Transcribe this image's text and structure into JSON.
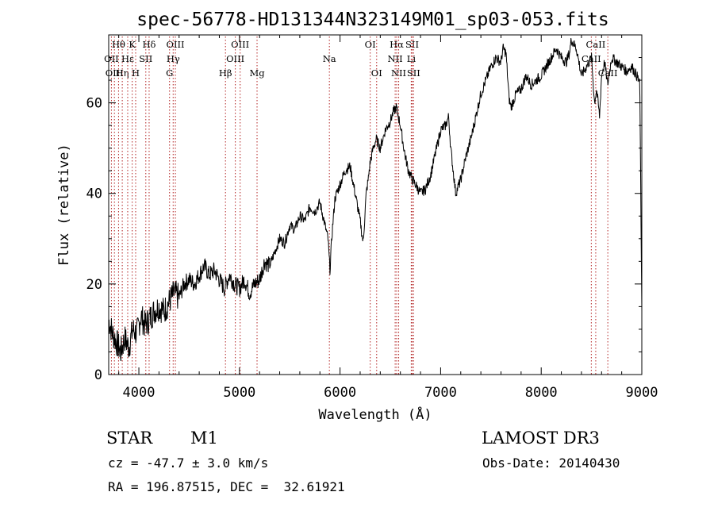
{
  "chart_data": {
    "type": "line",
    "title": "spec-56778-HD131344N323149M01_sp03-053.fits",
    "xlabel": "Wavelength (Å)",
    "ylabel": "Flux (relative)",
    "xlim": [
      3700,
      9000
    ],
    "ylim": [
      0,
      75
    ],
    "xticks": [
      4000,
      5000,
      6000,
      7000,
      8000,
      9000
    ],
    "yticks": [
      0,
      20,
      40,
      60
    ],
    "grid": false,
    "line_color": "#000000",
    "marker_color": "#b22222",
    "series": [
      {
        "x": [
          3700,
          3740,
          3780,
          3820,
          3860,
          3900,
          3940,
          3980,
          4020,
          4060,
          4100,
          4150,
          4200,
          4250,
          4300,
          4350,
          4400,
          4450,
          4500,
          4550,
          4600,
          4650,
          4700,
          4750,
          4800,
          4850,
          4900,
          4950,
          5000,
          5050,
          5100,
          5150,
          5200,
          5250,
          5300,
          5350,
          5400,
          5450,
          5500,
          5550,
          5600,
          5650,
          5700,
          5750,
          5800,
          5850,
          5880,
          5900,
          5920,
          5950,
          6000,
          6050,
          6100,
          6150,
          6200,
          6230,
          6260,
          6280,
          6300,
          6330,
          6360,
          6400,
          6450,
          6500,
          6530,
          6560,
          6580,
          6600,
          6620,
          6650,
          6680,
          6700,
          6720,
          6750,
          6800,
          6850,
          6900,
          6950,
          7000,
          7050,
          7080,
          7100,
          7120,
          7150,
          7200,
          7250,
          7300,
          7350,
          7400,
          7450,
          7500,
          7550,
          7600,
          7620,
          7650,
          7680,
          7700,
          7750,
          7800,
          7850,
          7900,
          7950,
          8000,
          8050,
          8100,
          8150,
          8200,
          8250,
          8280,
          8300,
          8350,
          8400,
          8450,
          8500,
          8530,
          8550,
          8580,
          8600,
          8630,
          8660,
          8700,
          8750,
          8800,
          8850,
          8900,
          8950,
          8970,
          8980,
          9000
        ],
        "y": [
          12,
          9,
          7,
          5,
          8,
          6,
          10,
          9,
          13,
          11,
          12,
          14,
          15,
          14,
          16,
          18,
          17,
          20,
          21,
          20,
          22,
          24,
          22,
          23,
          21,
          19,
          22,
          20,
          19,
          21,
          18,
          20,
          21,
          25,
          24,
          27,
          30,
          29,
          33,
          32,
          35,
          34,
          37,
          36,
          38,
          33,
          30,
          23,
          31,
          39,
          42,
          45,
          46,
          40,
          34,
          29,
          40,
          43,
          47,
          50,
          52,
          50,
          54,
          56,
          58,
          59,
          57,
          55,
          52,
          48,
          45,
          44,
          43,
          42,
          40,
          41,
          44,
          49,
          54,
          55,
          57,
          50,
          46,
          40,
          43,
          48,
          52,
          57,
          62,
          65,
          68,
          70,
          69,
          72,
          71,
          61,
          59,
          62,
          63,
          66,
          64,
          65,
          66,
          68,
          70,
          72,
          70,
          69,
          71,
          74,
          72,
          66,
          68,
          70,
          60,
          63,
          57,
          66,
          69,
          64,
          70,
          69,
          68,
          67,
          68,
          66,
          65,
          64,
          14
        ]
      }
    ],
    "line_markers": [
      {
        "name": "Hθ",
        "x": 3798,
        "row": 0
      },
      {
        "name": "OII",
        "x": 3727,
        "row": 1
      },
      {
        "name": "OIII",
        "x": 3757,
        "row": 2
      },
      {
        "name": "Hη",
        "x": 3835,
        "row": 2
      },
      {
        "name": "Hε",
        "x": 3889,
        "row": 1
      },
      {
        "name": "K",
        "x": 3934,
        "row": 0
      },
      {
        "name": "H",
        "x": 3968,
        "row": 2
      },
      {
        "name": "SII",
        "x": 4069,
        "row": 1
      },
      {
        "name": "Hδ",
        "x": 4102,
        "row": 0
      },
      {
        "name": "OIII",
        "x": 4363,
        "row": 0
      },
      {
        "name": "Hγ",
        "x": 4341,
        "row": 1
      },
      {
        "name": "G",
        "x": 4305,
        "row": 2
      },
      {
        "name": "Hβ",
        "x": 4861,
        "row": 2
      },
      {
        "name": "OIII",
        "x": 5007,
        "row": 0
      },
      {
        "name": "OIII",
        "x": 4959,
        "row": 1
      },
      {
        "name": "Mg",
        "x": 5175,
        "row": 2
      },
      {
        "name": "Na",
        "x": 5894,
        "row": 1
      },
      {
        "name": "OI",
        "x": 6300,
        "row": 0
      },
      {
        "name": "OI",
        "x": 6364,
        "row": 2
      },
      {
        "name": "Hα",
        "x": 6563,
        "row": 0
      },
      {
        "name": "NII",
        "x": 6548,
        "row": 1
      },
      {
        "name": "NII",
        "x": 6583,
        "row": 2
      },
      {
        "name": "Li",
        "x": 6708,
        "row": 1
      },
      {
        "name": "SII",
        "x": 6717,
        "row": 0
      },
      {
        "name": "SII",
        "x": 6731,
        "row": 2
      },
      {
        "name": "CaII",
        "x": 8542,
        "row": 0
      },
      {
        "name": "CaII",
        "x": 8498,
        "row": 1
      },
      {
        "name": "CaII",
        "x": 8662,
        "row": 2
      }
    ]
  },
  "info": {
    "object_class": "STAR",
    "subclass": "M1",
    "redshift": "cz = -47.7 ± 3.0 km/s",
    "coords": "RA = 196.87515, DEC =  32.61921",
    "survey": "LAMOST DR3",
    "obs_date": "Obs-Date: 20140430"
  }
}
